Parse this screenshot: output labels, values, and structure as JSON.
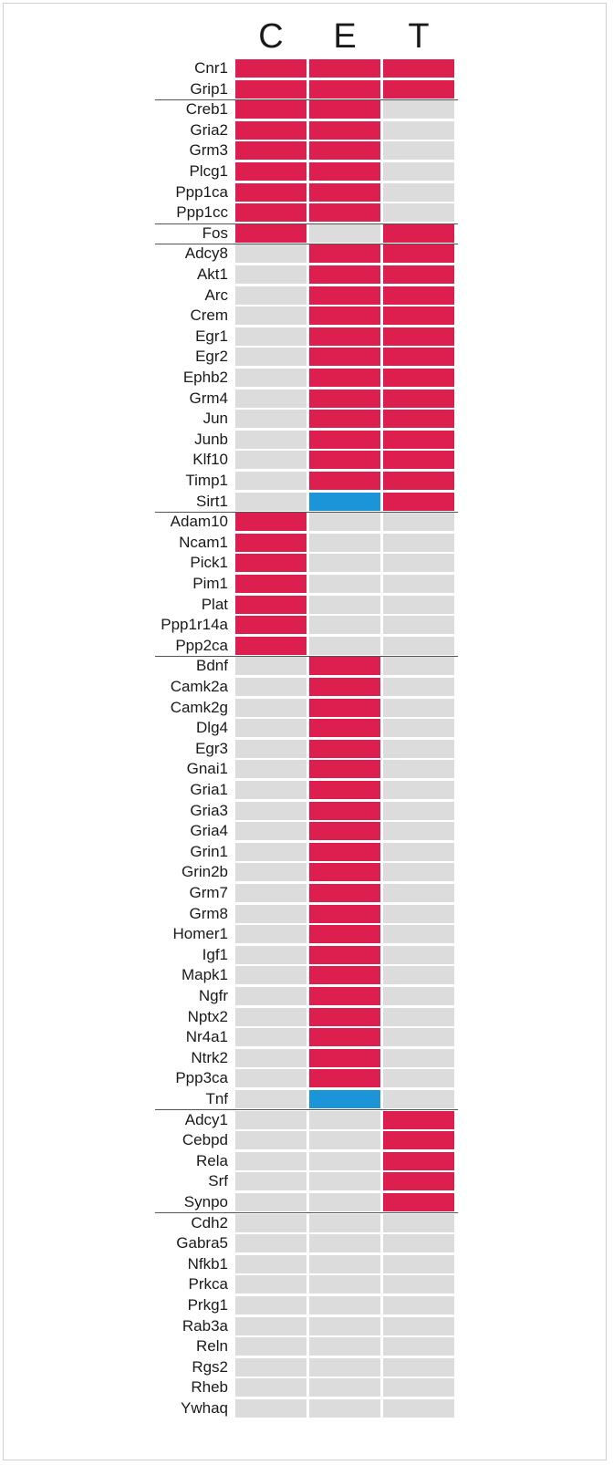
{
  "chart_data": {
    "type": "heatmap",
    "columns": [
      "C",
      "E",
      "T"
    ],
    "value_colors": {
      "1": "#dc1f4f",
      "-1": "#1b94d8",
      "0": "#dcdcdc"
    },
    "groups": [
      {
        "rows": [
          {
            "gene": "Cnr1",
            "values": [
              1,
              1,
              1
            ]
          },
          {
            "gene": "Grip1",
            "values": [
              1,
              1,
              1
            ]
          }
        ]
      },
      {
        "rows": [
          {
            "gene": "Creb1",
            "values": [
              1,
              1,
              0
            ]
          },
          {
            "gene": "Gria2",
            "values": [
              1,
              1,
              0
            ]
          },
          {
            "gene": "Grm3",
            "values": [
              1,
              1,
              0
            ]
          },
          {
            "gene": "Plcg1",
            "values": [
              1,
              1,
              0
            ]
          },
          {
            "gene": "Ppp1ca",
            "values": [
              1,
              1,
              0
            ]
          },
          {
            "gene": "Ppp1cc",
            "values": [
              1,
              1,
              0
            ]
          }
        ]
      },
      {
        "rows": [
          {
            "gene": "Fos",
            "values": [
              1,
              0,
              1
            ]
          }
        ]
      },
      {
        "rows": [
          {
            "gene": "Adcy8",
            "values": [
              0,
              1,
              1
            ]
          },
          {
            "gene": "Akt1",
            "values": [
              0,
              1,
              1
            ]
          },
          {
            "gene": "Arc",
            "values": [
              0,
              1,
              1
            ]
          },
          {
            "gene": "Crem",
            "values": [
              0,
              1,
              1
            ]
          },
          {
            "gene": "Egr1",
            "values": [
              0,
              1,
              1
            ]
          },
          {
            "gene": "Egr2",
            "values": [
              0,
              1,
              1
            ]
          },
          {
            "gene": "Ephb2",
            "values": [
              0,
              1,
              1
            ]
          },
          {
            "gene": "Grm4",
            "values": [
              0,
              1,
              1
            ]
          },
          {
            "gene": "Jun",
            "values": [
              0,
              1,
              1
            ]
          },
          {
            "gene": "Junb",
            "values": [
              0,
              1,
              1
            ]
          },
          {
            "gene": "Klf10",
            "values": [
              0,
              1,
              1
            ]
          },
          {
            "gene": "Timp1",
            "values": [
              0,
              1,
              1
            ]
          },
          {
            "gene": "Sirt1",
            "values": [
              0,
              -1,
              1
            ]
          }
        ]
      },
      {
        "rows": [
          {
            "gene": "Adam10",
            "values": [
              1,
              0,
              0
            ]
          },
          {
            "gene": "Ncam1",
            "values": [
              1,
              0,
              0
            ]
          },
          {
            "gene": "Pick1",
            "values": [
              1,
              0,
              0
            ]
          },
          {
            "gene": "Pim1",
            "values": [
              1,
              0,
              0
            ]
          },
          {
            "gene": "Plat",
            "values": [
              1,
              0,
              0
            ]
          },
          {
            "gene": "Ppp1r14a",
            "values": [
              1,
              0,
              0
            ]
          },
          {
            "gene": "Ppp2ca",
            "values": [
              1,
              0,
              0
            ]
          }
        ]
      },
      {
        "rows": [
          {
            "gene": "Bdnf",
            "values": [
              0,
              1,
              0
            ]
          },
          {
            "gene": "Camk2a",
            "values": [
              0,
              1,
              0
            ]
          },
          {
            "gene": "Camk2g",
            "values": [
              0,
              1,
              0
            ]
          },
          {
            "gene": "Dlg4",
            "values": [
              0,
              1,
              0
            ]
          },
          {
            "gene": "Egr3",
            "values": [
              0,
              1,
              0
            ]
          },
          {
            "gene": "Gnai1",
            "values": [
              0,
              1,
              0
            ]
          },
          {
            "gene": "Gria1",
            "values": [
              0,
              1,
              0
            ]
          },
          {
            "gene": "Gria3",
            "values": [
              0,
              1,
              0
            ]
          },
          {
            "gene": "Gria4",
            "values": [
              0,
              1,
              0
            ]
          },
          {
            "gene": "Grin1",
            "values": [
              0,
              1,
              0
            ]
          },
          {
            "gene": "Grin2b",
            "values": [
              0,
              1,
              0
            ]
          },
          {
            "gene": "Grm7",
            "values": [
              0,
              1,
              0
            ]
          },
          {
            "gene": "Grm8",
            "values": [
              0,
              1,
              0
            ]
          },
          {
            "gene": "Homer1",
            "values": [
              0,
              1,
              0
            ]
          },
          {
            "gene": "Igf1",
            "values": [
              0,
              1,
              0
            ]
          },
          {
            "gene": "Mapk1",
            "values": [
              0,
              1,
              0
            ]
          },
          {
            "gene": "Ngfr",
            "values": [
              0,
              1,
              0
            ]
          },
          {
            "gene": "Nptx2",
            "values": [
              0,
              1,
              0
            ]
          },
          {
            "gene": "Nr4a1",
            "values": [
              0,
              1,
              0
            ]
          },
          {
            "gene": "Ntrk2",
            "values": [
              0,
              1,
              0
            ]
          },
          {
            "gene": "Ppp3ca",
            "values": [
              0,
              1,
              0
            ]
          },
          {
            "gene": "Tnf",
            "values": [
              0,
              -1,
              0
            ]
          }
        ]
      },
      {
        "rows": [
          {
            "gene": "Adcy1",
            "values": [
              0,
              0,
              1
            ]
          },
          {
            "gene": "Cebpd",
            "values": [
              0,
              0,
              1
            ]
          },
          {
            "gene": "Rela",
            "values": [
              0,
              0,
              1
            ]
          },
          {
            "gene": "Srf",
            "values": [
              0,
              0,
              1
            ]
          },
          {
            "gene": "Synpo",
            "values": [
              0,
              0,
              1
            ]
          }
        ]
      },
      {
        "rows": [
          {
            "gene": "Cdh2",
            "values": [
              0,
              0,
              0
            ]
          },
          {
            "gene": "Gabra5",
            "values": [
              0,
              0,
              0
            ]
          },
          {
            "gene": "Nfkb1",
            "values": [
              0,
              0,
              0
            ]
          },
          {
            "gene": "Prkca",
            "values": [
              0,
              0,
              0
            ]
          },
          {
            "gene": "Prkg1",
            "values": [
              0,
              0,
              0
            ]
          },
          {
            "gene": "Rab3a",
            "values": [
              0,
              0,
              0
            ]
          },
          {
            "gene": "Reln",
            "values": [
              0,
              0,
              0
            ]
          },
          {
            "gene": "Rgs2",
            "values": [
              0,
              0,
              0
            ]
          },
          {
            "gene": "Rheb",
            "values": [
              0,
              0,
              0
            ]
          },
          {
            "gene": "Ywhaq",
            "values": [
              0,
              0,
              0
            ]
          }
        ]
      }
    ]
  }
}
